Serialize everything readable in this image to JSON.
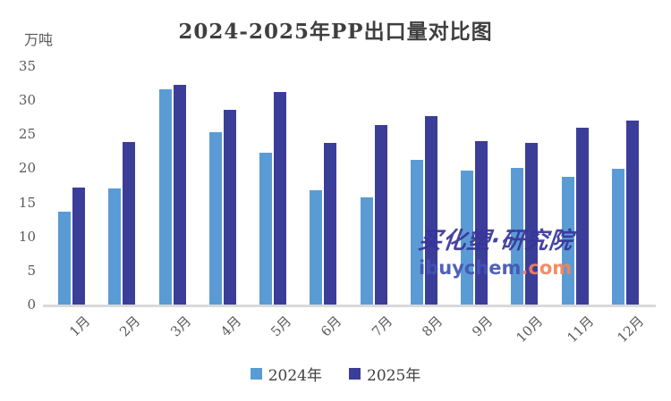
{
  "title": "2024-2025年PP出口量对比图",
  "unit_label": "万吨",
  "watermark": {
    "line1": "买化塑·研究院",
    "line2_main": "ibuychem",
    "line2_suffix": ".com",
    "color_line1": "#37349b",
    "color_line2_main": "#4254b5",
    "color_line2_suffix": "#f4835c"
  },
  "legend": [
    {
      "label": "2024年",
      "color": "#5b9bd5"
    },
    {
      "label": "2025年",
      "color": "#3b3e99"
    }
  ],
  "chart_data": {
    "type": "bar",
    "title": "2024-2025年PP出口量对比图",
    "xlabel": "",
    "ylabel": "万吨",
    "categories": [
      "1月",
      "2月",
      "3月",
      "4月",
      "5月",
      "6月",
      "7月",
      "8月",
      "9月",
      "10月",
      "11月",
      "12月"
    ],
    "series": [
      {
        "name": "2024年",
        "color": "#5b9bd5",
        "values": [
          13.6,
          17.0,
          31.6,
          25.3,
          22.3,
          16.8,
          15.7,
          21.3,
          19.6,
          20.0,
          18.7,
          19.9
        ]
      },
      {
        "name": "2025年",
        "color": "#3b3e99",
        "values": [
          17.2,
          23.9,
          32.3,
          28.6,
          31.2,
          23.7,
          26.4,
          27.7,
          24.0,
          23.7,
          25.9,
          27.0
        ]
      }
    ],
    "ylim": [
      0,
      35
    ],
    "yticks": [
      0,
      5,
      10,
      15,
      20,
      25,
      30,
      35
    ],
    "grid": false,
    "legend_position": "bottom",
    "bar_color_axis": "#d9d9d9"
  }
}
